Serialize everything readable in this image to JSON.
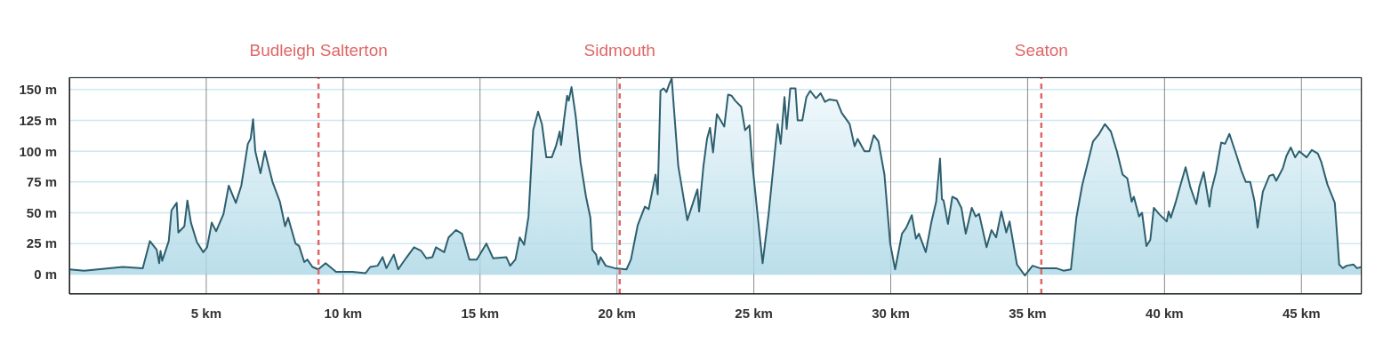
{
  "chart_data": {
    "type": "area",
    "color": "#2d5f6e",
    "x": [
      0,
      0.54,
      1.95,
      2.68,
      2.94,
      3.19,
      3.28,
      3.33,
      3.39,
      3.63,
      3.73,
      3.92,
      3.98,
      4.2,
      4.31,
      4.44,
      4.66,
      4.89,
      5.03,
      5.2,
      5.36,
      5.63,
      5.82,
      6.08,
      6.28,
      6.52,
      6.62,
      6.71,
      6.79,
      6.98,
      7.14,
      7.42,
      7.69,
      7.88,
      7.99,
      8.26,
      8.39,
      8.58,
      8.69,
      8.88,
      9.09,
      9.36,
      9.74,
      10.34,
      10.82,
      10.99,
      11.26,
      11.44,
      11.58,
      11.85,
      12.01,
      12.29,
      12.59,
      12.85,
      13.04,
      13.26,
      13.39,
      13.69,
      13.85,
      14.12,
      14.34,
      14.61,
      14.88,
      15.23,
      15.48,
      15.96,
      16.1,
      16.29,
      16.45,
      16.61,
      16.77,
      16.94,
      17.12,
      17.26,
      17.42,
      17.62,
      17.77,
      17.91,
      17.96,
      18.07,
      18.18,
      18.24,
      18.34,
      18.49,
      18.67,
      18.87,
      19.03,
      19.1,
      19.24,
      19.32,
      19.4,
      19.59,
      19.92,
      20.35,
      20.51,
      20.76,
      21.02,
      21.16,
      21.41,
      21.49,
      21.59,
      21.7,
      21.81,
      21.92,
      22.0,
      22.24,
      22.57,
      22.94,
      23.0,
      23.16,
      23.29,
      23.4,
      23.51,
      23.65,
      23.92,
      24.06,
      24.19,
      24.32,
      24.54,
      24.68,
      24.84,
      24.93,
      25.32,
      25.54,
      25.87,
      25.98,
      26.12,
      26.2,
      26.33,
      26.52,
      26.6,
      26.77,
      26.92,
      27.06,
      27.27,
      27.44,
      27.6,
      27.76,
      28.03,
      28.21,
      28.5,
      28.68,
      28.79,
      29.04,
      29.22,
      29.38,
      29.55,
      29.77,
      29.98,
      30.16,
      30.41,
      30.57,
      30.77,
      30.92,
      31.03,
      31.28,
      31.49,
      31.66,
      31.8,
      31.87,
      31.93,
      32.09,
      32.25,
      32.42,
      32.58,
      32.74,
      32.96,
      33.1,
      33.23,
      33.5,
      33.68,
      33.85,
      34.04,
      34.22,
      34.34,
      34.61,
      34.9,
      35.18,
      35.45,
      36.04,
      36.31,
      36.58,
      36.78,
      36.99,
      37.39,
      37.61,
      37.82,
      38.04,
      38.26,
      38.47,
      38.64,
      38.8,
      38.88,
      39.07,
      39.18,
      39.34,
      39.48,
      39.61,
      39.8,
      40.08,
      40.15,
      40.23,
      40.4,
      40.55,
      40.77,
      40.94,
      41.16,
      41.27,
      41.43,
      41.64,
      41.72,
      41.88,
      42.07,
      42.21,
      42.37,
      42.64,
      42.81,
      42.97,
      43.13,
      43.29,
      43.4,
      43.59,
      43.83,
      43.97,
      44.08,
      44.32,
      44.45,
      44.61,
      44.77,
      44.92,
      45.19,
      45.38,
      45.6,
      45.73,
      45.95,
      46.22,
      46.38,
      46.51,
      46.65,
      46.9,
      47.03,
      47.2
    ],
    "values": [
      4,
      3,
      6,
      5,
      27,
      20,
      9,
      19,
      11,
      27,
      52,
      58,
      34,
      39,
      60,
      42,
      26,
      18,
      22,
      42,
      35,
      49,
      72,
      58,
      72,
      106,
      110,
      126,
      100,
      82,
      100,
      75,
      59,
      39,
      46,
      25,
      23,
      10,
      12,
      6,
      4,
      9,
      2,
      2,
      1,
      6,
      7,
      14,
      5,
      16,
      4,
      13,
      22,
      19,
      13,
      14,
      22,
      18,
      30,
      36,
      33,
      12,
      12,
      25,
      13,
      14,
      7,
      12,
      30,
      24,
      47,
      117,
      132,
      122,
      95,
      95,
      104,
      116,
      105,
      126,
      145,
      141,
      152,
      129,
      91,
      63,
      46,
      20,
      16,
      8,
      14,
      7,
      5,
      4,
      12,
      40,
      55,
      53,
      81,
      65,
      149,
      151,
      148,
      155,
      159,
      88,
      44,
      69,
      51,
      88,
      110,
      119,
      99,
      130,
      120,
      146,
      145,
      141,
      136,
      117,
      121,
      93,
      9,
      49,
      122,
      106,
      144,
      118,
      151,
      151,
      125,
      125,
      144,
      149,
      143,
      147,
      140,
      142,
      141,
      131,
      122,
      104,
      110,
      100,
      100,
      113,
      108,
      81,
      25,
      4,
      33,
      38,
      48,
      29,
      33,
      18,
      43,
      59,
      94,
      61,
      60,
      41,
      63,
      61,
      54,
      33,
      54,
      47,
      49,
      22,
      36,
      30,
      51,
      34,
      43,
      8,
      -1,
      7,
      5,
      5,
      3,
      4,
      46,
      72,
      108,
      114,
      122,
      116,
      100,
      81,
      78,
      59,
      63,
      47,
      50,
      23,
      28,
      54,
      49,
      43,
      51,
      46,
      58,
      70,
      87,
      71,
      57,
      71,
      83,
      55,
      69,
      83,
      107,
      106,
      114,
      96,
      84,
      75,
      75,
      59,
      38,
      67,
      80,
      81,
      76,
      86,
      96,
      103,
      95,
      100,
      95,
      101,
      98,
      91,
      73,
      58,
      8,
      5,
      7,
      8,
      5,
      6
    ],
    "xlim": [
      0,
      47.2
    ],
    "ylim": [
      -16,
      160
    ],
    "xticks": [
      {
        "value": 5,
        "label": "5 km"
      },
      {
        "value": 10,
        "label": "10 km"
      },
      {
        "value": 15,
        "label": "15 km"
      },
      {
        "value": 20,
        "label": "20 km"
      },
      {
        "value": 25,
        "label": "25 km"
      },
      {
        "value": 30,
        "label": "30 km"
      },
      {
        "value": 35,
        "label": "35 km"
      },
      {
        "value": 40,
        "label": "40 km"
      },
      {
        "value": 45,
        "label": "45 km"
      }
    ],
    "yticks": [
      {
        "value": 0,
        "label": "0 m"
      },
      {
        "value": 25,
        "label": "25 m"
      },
      {
        "value": 50,
        "label": "50 m"
      },
      {
        "value": 75,
        "label": "75 m"
      },
      {
        "value": 100,
        "label": "100 m"
      },
      {
        "value": 125,
        "label": "125 m"
      },
      {
        "value": 150,
        "label": "150 m"
      }
    ],
    "grid": true,
    "ref_lines": [
      {
        "axis": "x",
        "value": 9.1,
        "label": "Budleigh Salterton",
        "color": "#e06666",
        "line_style": "dashed"
      },
      {
        "axis": "x",
        "value": 20.1,
        "label": "Sidmouth",
        "color": "#e06666",
        "line_style": "dashed"
      },
      {
        "axis": "x",
        "value": 35.5,
        "label": "Seaton",
        "color": "#e06666",
        "line_style": "dashed"
      }
    ]
  }
}
